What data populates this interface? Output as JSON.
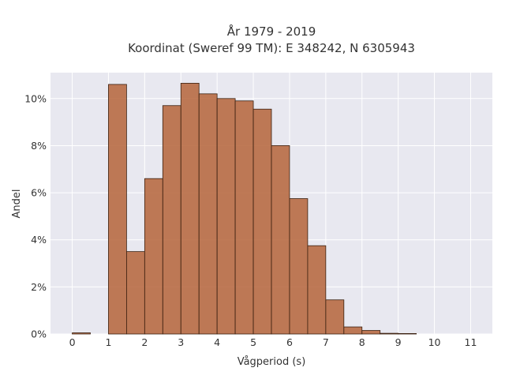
{
  "chart_data": {
    "type": "bar",
    "title": "År 1979 - 2019",
    "subtitle": "Koordinat (Sweref 99 TM): E 348242, N 6305943",
    "xlabel": "Vågperiod (s)",
    "ylabel": "Andel",
    "xlim": [
      -0.6,
      11.6
    ],
    "ylim": [
      0,
      0.111
    ],
    "xticks": [
      "0",
      "1",
      "2",
      "3",
      "4",
      "5",
      "6",
      "7",
      "8",
      "9",
      "10",
      "11"
    ],
    "yticks": [
      "0%",
      "2%",
      "4%",
      "6%",
      "8%",
      "10%"
    ],
    "bin_width": 0.5,
    "bins": [
      {
        "x0": 0.0,
        "value": 0.0005
      },
      {
        "x0": 0.5,
        "value": 0.0
      },
      {
        "x0": 1.0,
        "value": 0.106
      },
      {
        "x0": 1.5,
        "value": 0.035
      },
      {
        "x0": 2.0,
        "value": 0.066
      },
      {
        "x0": 2.5,
        "value": 0.097
      },
      {
        "x0": 3.0,
        "value": 0.1065
      },
      {
        "x0": 3.5,
        "value": 0.102
      },
      {
        "x0": 4.0,
        "value": 0.1
      },
      {
        "x0": 4.5,
        "value": 0.099
      },
      {
        "x0": 5.0,
        "value": 0.0955
      },
      {
        "x0": 5.5,
        "value": 0.08
      },
      {
        "x0": 6.0,
        "value": 0.0575
      },
      {
        "x0": 6.5,
        "value": 0.0375
      },
      {
        "x0": 7.0,
        "value": 0.0145
      },
      {
        "x0": 7.5,
        "value": 0.003
      },
      {
        "x0": 8.0,
        "value": 0.0015
      },
      {
        "x0": 8.5,
        "value": 0.0003
      },
      {
        "x0": 9.0,
        "value": 0.0002
      }
    ],
    "grid": true,
    "bar_color": "#b5643a",
    "background_color": "#e8e8f0"
  }
}
